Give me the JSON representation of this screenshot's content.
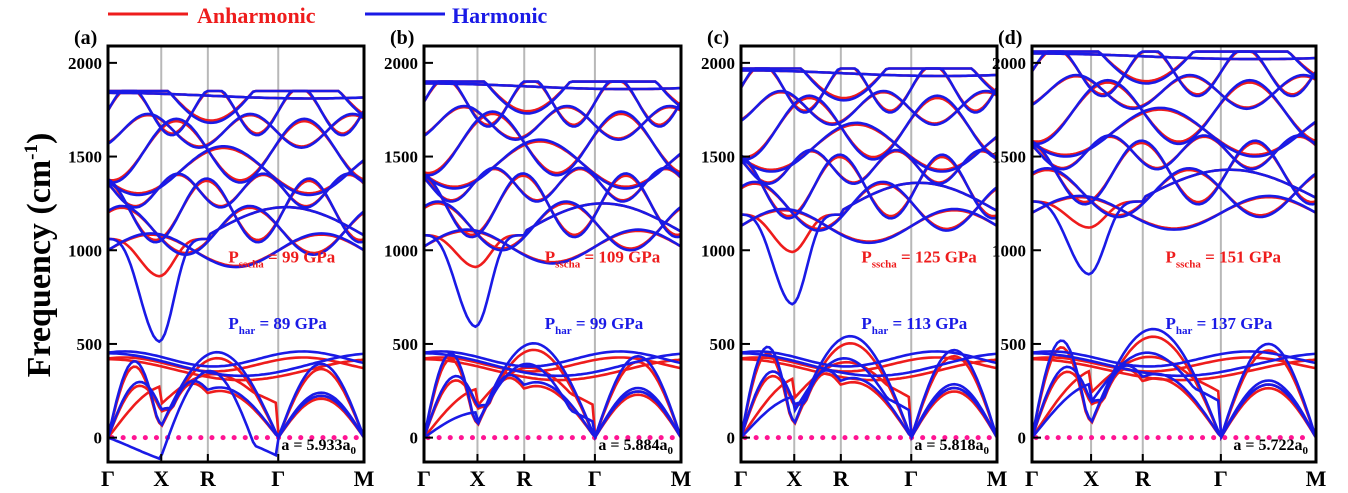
{
  "legend": {
    "entries": [
      {
        "label": "Anharmonic",
        "color": "#ee1c1c"
      },
      {
        "label": "Harmonic",
        "color": "#1a1ae6"
      }
    ]
  },
  "ylabel_main": "Frequency (cm",
  "ylabel_sup": "-1",
  "ylabel_end": ")",
  "colors": {
    "anharmonic": "#ee1c1c",
    "harmonic": "#1a1ae6",
    "zero_line": "#ff1493",
    "kline": "#b8b8b8"
  },
  "chart_data": [
    {
      "type": "line",
      "panel": "(a)",
      "kpoints": [
        "Γ",
        "X",
        "R",
        "Γ",
        "M"
      ],
      "kpos": [
        0,
        0.208,
        0.39,
        0.665,
        1.0
      ],
      "ylim": [
        -130,
        2090
      ],
      "yticks": [
        0,
        500,
        1000,
        1500,
        2000
      ],
      "p_sscha_label": "P",
      "p_sscha_sub": "sscha",
      "p_sscha_value": "=   99 GPa",
      "p_har_label": "P",
      "p_har_sub": "har",
      "p_har_value": "=   89 GPa",
      "lattice_main": "a = 5.933a",
      "lattice_sub": "0",
      "acoustic_top": 480,
      "x_softest": -100,
      "x_soft_anh": 180,
      "optical_min": 1000,
      "optical_max": 1850,
      "dip_anh": 860,
      "dip_har": 510
    },
    {
      "type": "line",
      "panel": "(b)",
      "kpoints": [
        "Γ",
        "X",
        "R",
        "Γ",
        "M"
      ],
      "kpos": [
        0,
        0.208,
        0.39,
        0.665,
        1.0
      ],
      "ylim": [
        -130,
        2090
      ],
      "yticks": [
        0,
        500,
        1000,
        1500,
        2000
      ],
      "p_sscha_label": "P",
      "p_sscha_sub": "sscha",
      "p_sscha_value": "= 109 GPa",
      "p_har_label": "P",
      "p_har_sub": "har",
      "p_har_value": "=   99 GPa",
      "lattice_main": "a = 5.884a",
      "lattice_sub": "0",
      "acoustic_top": 530,
      "x_softest": 80,
      "x_soft_anh": 170,
      "optical_min": 1020,
      "optical_max": 1900,
      "dip_anh": 910,
      "dip_har": 590
    },
    {
      "type": "line",
      "panel": "(c)",
      "kpoints": [
        "Γ",
        "X",
        "R",
        "Γ",
        "M"
      ],
      "kpos": [
        0,
        0.208,
        0.39,
        0.665,
        1.0
      ],
      "ylim": [
        -130,
        2090
      ],
      "yticks": [
        0,
        500,
        1000,
        1500,
        2000
      ],
      "p_sscha_label": "P",
      "p_sscha_sub": "sscha",
      "p_sscha_value": "= 125 GPa",
      "p_har_label": "P",
      "p_har_sub": "har",
      "p_har_value": "= 113 GPa",
      "lattice_main": "a = 5.818a",
      "lattice_sub": "0",
      "acoustic_top": 570,
      "x_softest": 140,
      "x_soft_anh": 210,
      "optical_min": 1130,
      "optical_max": 1970,
      "dip_anh": 990,
      "dip_har": 710
    },
    {
      "type": "line",
      "panel": "(d)",
      "kpoints": [
        "Γ",
        "X",
        "R",
        "Γ",
        "M"
      ],
      "kpos": [
        0,
        0.208,
        0.39,
        0.665,
        1.0
      ],
      "ylim": [
        -130,
        2090
      ],
      "yticks": [
        0,
        500,
        1000,
        1500,
        2000
      ],
      "p_sscha_label": "P",
      "p_sscha_sub": "sscha",
      "p_sscha_value": "= 151 GPa",
      "p_har_label": "P",
      "p_har_sub": "har",
      "p_har_value": "= 137 GPa",
      "lattice_main": "a = 5.722a",
      "lattice_sub": "0",
      "acoustic_top": 610,
      "x_softest": 190,
      "x_soft_anh": 240,
      "optical_min": 1200,
      "optical_max": 2060,
      "dip_anh": 1120,
      "dip_har": 870
    }
  ]
}
